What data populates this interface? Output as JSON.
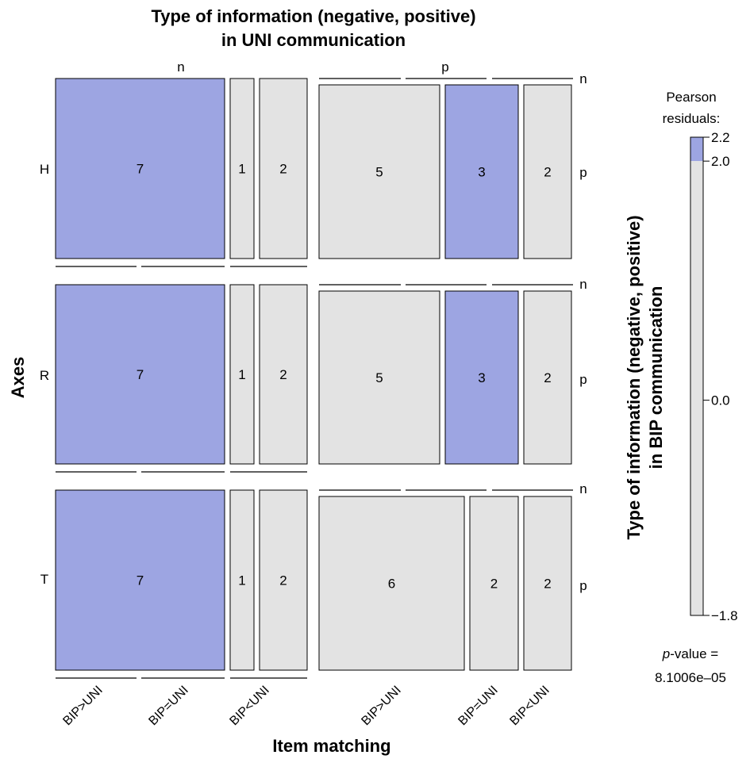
{
  "colors": {
    "high_residual": "#9da5e2",
    "neutral": "#e3e3e3",
    "stroke": "#000000"
  },
  "chart_data": {
    "type": "mosaic",
    "title_line1": "Type of information (negative, positive)",
    "title_line2": "in UNI communication",
    "xlabel": "Item matching",
    "ylabel": "Axes",
    "right_title_line1": "Type of information (negative, positive)",
    "right_title_line2": "in BIP communication",
    "top_levels": [
      "n",
      "p"
    ],
    "rows": [
      "H",
      "R",
      "T"
    ],
    "bip_levels": [
      "n",
      "p"
    ],
    "matching_levels": [
      "BIP>UNI",
      "BIP=UNI",
      "BIP<UNI"
    ],
    "cells": [
      {
        "row": "H",
        "uni": "n",
        "bip": "p",
        "match": "BIP>UNI",
        "value": 7,
        "shade": "high"
      },
      {
        "row": "H",
        "uni": "n",
        "bip": "p",
        "match": "BIP=UNI",
        "value": 1,
        "shade": "neutral"
      },
      {
        "row": "H",
        "uni": "n",
        "bip": "p",
        "match": "BIP<UNI",
        "value": 2,
        "shade": "neutral"
      },
      {
        "row": "H",
        "uni": "p",
        "bip": "p",
        "match": "BIP>UNI",
        "value": 5,
        "shade": "neutral"
      },
      {
        "row": "H",
        "uni": "p",
        "bip": "p",
        "match": "BIP=UNI",
        "value": 3,
        "shade": "high"
      },
      {
        "row": "H",
        "uni": "p",
        "bip": "p",
        "match": "BIP<UNI",
        "value": 2,
        "shade": "neutral"
      },
      {
        "row": "R",
        "uni": "n",
        "bip": "p",
        "match": "BIP>UNI",
        "value": 7,
        "shade": "high"
      },
      {
        "row": "R",
        "uni": "n",
        "bip": "p",
        "match": "BIP=UNI",
        "value": 1,
        "shade": "neutral"
      },
      {
        "row": "R",
        "uni": "n",
        "bip": "p",
        "match": "BIP<UNI",
        "value": 2,
        "shade": "neutral"
      },
      {
        "row": "R",
        "uni": "p",
        "bip": "p",
        "match": "BIP>UNI",
        "value": 5,
        "shade": "neutral"
      },
      {
        "row": "R",
        "uni": "p",
        "bip": "p",
        "match": "BIP=UNI",
        "value": 3,
        "shade": "high"
      },
      {
        "row": "R",
        "uni": "p",
        "bip": "p",
        "match": "BIP<UNI",
        "value": 2,
        "shade": "neutral"
      },
      {
        "row": "T",
        "uni": "n",
        "bip": "p",
        "match": "BIP>UNI",
        "value": 7,
        "shade": "high"
      },
      {
        "row": "T",
        "uni": "n",
        "bip": "p",
        "match": "BIP=UNI",
        "value": 1,
        "shade": "neutral"
      },
      {
        "row": "T",
        "uni": "n",
        "bip": "p",
        "match": "BIP<UNI",
        "value": 2,
        "shade": "neutral"
      },
      {
        "row": "T",
        "uni": "p",
        "bip": "p",
        "match": "BIP>UNI",
        "value": 6,
        "shade": "neutral"
      },
      {
        "row": "T",
        "uni": "p",
        "bip": "p",
        "match": "BIP=UNI",
        "value": 2,
        "shade": "neutral"
      },
      {
        "row": "T",
        "uni": "p",
        "bip": "p",
        "match": "BIP<UNI",
        "value": 2,
        "shade": "neutral"
      }
    ],
    "legend": {
      "title_line1": "Pearson",
      "title_line2": "residuals:",
      "ticks": [
        "2.2",
        "2.0",
        "0.0",
        "−1.8"
      ],
      "tick_values": [
        2.2,
        2.0,
        0.0,
        -1.8
      ],
      "range": [
        -1.8,
        2.2
      ],
      "pvalue_italic": "p",
      "pvalue_rest": "-value =",
      "pvalue_number": "8.1006e–05"
    }
  }
}
